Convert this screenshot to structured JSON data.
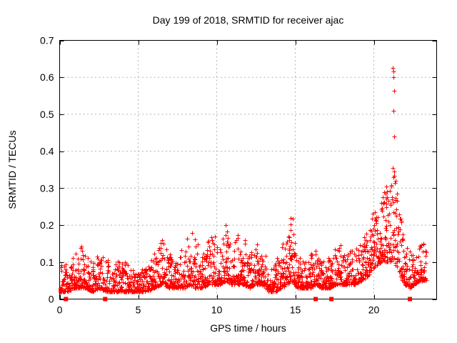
{
  "window": {
    "background": "#ffffff"
  },
  "chart_data": {
    "type": "scatter",
    "title": "Day 199 of 2018, SRMTID for receiver ajac",
    "xlabel": "GPS time / hours",
    "ylabel": "SRMTID / TECUs",
    "xlim": [
      0,
      24
    ],
    "ylim": [
      0,
      0.7
    ],
    "xticks": {
      "values": [
        0,
        5,
        10,
        15,
        20
      ],
      "labels": [
        "0",
        "5",
        "10",
        "15",
        "20"
      ]
    },
    "yticks": {
      "values": [
        0,
        0.1,
        0.2,
        0.3,
        0.4,
        0.5,
        0.6,
        0.7
      ],
      "labels": [
        "0",
        "0.1",
        "0.2",
        "0.3",
        "0.4",
        "0.5",
        "0.6",
        "0.7"
      ]
    },
    "grid": true,
    "grid_style": "dashed",
    "legend": "none",
    "colors": {
      "marker": "#ff0000",
      "grid": "#b4b4b4",
      "axis": "#000000",
      "text": "#000000",
      "background": "#ffffff"
    },
    "series": [
      {
        "name": "srmtid",
        "marker": "plus",
        "h_start": 0.05,
        "h_end": 23.35,
        "envelope": [
          [
            0.0,
            0.02,
            0.1
          ],
          [
            0.5,
            0.02,
            0.11
          ],
          [
            0.9,
            0.03,
            0.12
          ],
          [
            1.2,
            0.03,
            0.155
          ],
          [
            1.6,
            0.03,
            0.13
          ],
          [
            2.1,
            0.02,
            0.11
          ],
          [
            2.5,
            0.03,
            0.125
          ],
          [
            3.0,
            0.02,
            0.11
          ],
          [
            3.5,
            0.02,
            0.09
          ],
          [
            4.0,
            0.02,
            0.13
          ],
          [
            4.5,
            0.02,
            0.08
          ],
          [
            5.0,
            0.02,
            0.075
          ],
          [
            5.5,
            0.02,
            0.09
          ],
          [
            6.0,
            0.03,
            0.12
          ],
          [
            6.5,
            0.04,
            0.165
          ],
          [
            7.0,
            0.03,
            0.12
          ],
          [
            7.5,
            0.03,
            0.13
          ],
          [
            8.0,
            0.03,
            0.14
          ],
          [
            8.3,
            0.04,
            0.2
          ],
          [
            8.6,
            0.03,
            0.19
          ],
          [
            9.0,
            0.03,
            0.13
          ],
          [
            9.5,
            0.04,
            0.16
          ],
          [
            9.9,
            0.04,
            0.185
          ],
          [
            10.2,
            0.04,
            0.15
          ],
          [
            10.6,
            0.05,
            0.21
          ],
          [
            10.9,
            0.04,
            0.16
          ],
          [
            11.3,
            0.04,
            0.18
          ],
          [
            11.7,
            0.04,
            0.17
          ],
          [
            12.1,
            0.03,
            0.14
          ],
          [
            12.5,
            0.04,
            0.155
          ],
          [
            12.9,
            0.04,
            0.15
          ],
          [
            13.3,
            0.02,
            0.1
          ],
          [
            13.7,
            0.02,
            0.09
          ],
          [
            14.1,
            0.03,
            0.15
          ],
          [
            14.5,
            0.04,
            0.17
          ],
          [
            14.85,
            0.05,
            0.25
          ],
          [
            15.1,
            0.03,
            0.14
          ],
          [
            15.5,
            0.03,
            0.1
          ],
          [
            16.0,
            0.03,
            0.12
          ],
          [
            16.3,
            0.04,
            0.17
          ],
          [
            16.7,
            0.03,
            0.11
          ],
          [
            17.2,
            0.03,
            0.12
          ],
          [
            17.6,
            0.04,
            0.14
          ],
          [
            18.0,
            0.04,
            0.15
          ],
          [
            18.4,
            0.04,
            0.14
          ],
          [
            18.8,
            0.04,
            0.13
          ],
          [
            19.2,
            0.05,
            0.16
          ],
          [
            19.6,
            0.06,
            0.19
          ],
          [
            19.9,
            0.08,
            0.23
          ],
          [
            20.2,
            0.09,
            0.26
          ],
          [
            20.5,
            0.1,
            0.28
          ],
          [
            20.8,
            0.1,
            0.3
          ],
          [
            21.1,
            0.1,
            0.31
          ],
          [
            21.3,
            0.11,
            0.35
          ],
          [
            21.5,
            0.08,
            0.28
          ],
          [
            21.7,
            0.06,
            0.22
          ],
          [
            22.0,
            0.04,
            0.17
          ],
          [
            22.3,
            0.03,
            0.14
          ],
          [
            22.6,
            0.04,
            0.13
          ],
          [
            22.9,
            0.05,
            0.15
          ],
          [
            23.2,
            0.05,
            0.16
          ],
          [
            23.35,
            0.05,
            0.14
          ]
        ],
        "peak_points": [
          [
            21.22,
            0.625
          ],
          [
            21.25,
            0.615
          ],
          [
            21.24,
            0.6
          ],
          [
            21.28,
            0.563
          ],
          [
            21.25,
            0.51
          ],
          [
            21.28,
            0.44
          ],
          [
            21.22,
            0.355
          ],
          [
            21.3,
            0.345
          ],
          [
            21.26,
            0.33
          ],
          [
            20.8,
            0.305
          ]
        ]
      },
      {
        "name": "zero-flags",
        "marker": "filled-square",
        "y": 0,
        "x": [
          0.4,
          2.9,
          16.3,
          17.3,
          22.3
        ]
      }
    ],
    "render_hints": {
      "seed": 1234567,
      "epoch_step_hours": 0.045,
      "points_per_epoch_min": 3,
      "points_per_epoch_max": 6,
      "skew_exponent_normal": 2.6,
      "skew_exponent_active": 1.7,
      "active_threshold": 0.2,
      "h_jitter": 0.05
    }
  }
}
